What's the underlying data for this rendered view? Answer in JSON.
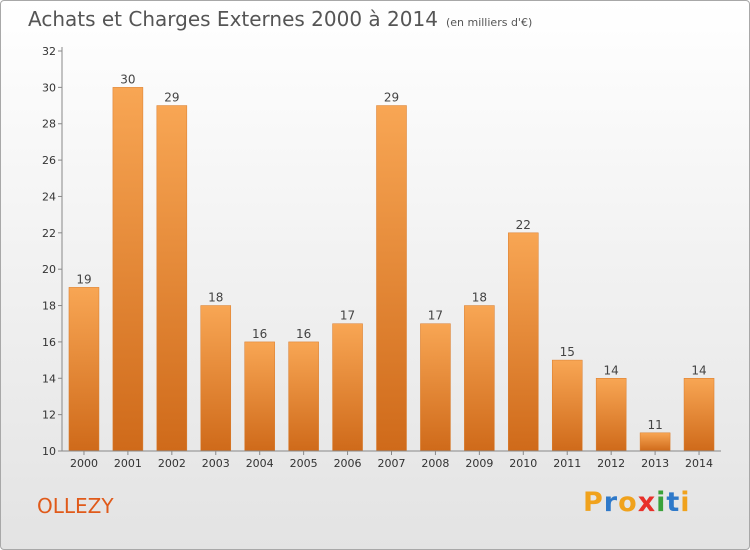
{
  "title": "Achats et Charges Externes 2000 à 2014",
  "subtitle": "(en milliers d'€)",
  "commune": "OLLEZY",
  "logo": {
    "letters": [
      "P",
      "r",
      "o",
      "x",
      "i",
      "t",
      "i"
    ],
    "colors": [
      "#f0a21c",
      "#2e79c9",
      "#f0a21c",
      "#e8302a",
      "#3aa23a",
      "#2e79c9",
      "#f0a21c"
    ]
  },
  "chart_data": {
    "type": "bar",
    "title": "Achats et Charges Externes 2000 à 2014",
    "subtitle": "(en milliers d'€)",
    "categories": [
      "2000",
      "2001",
      "2002",
      "2003",
      "2004",
      "2005",
      "2006",
      "2007",
      "2008",
      "2009",
      "2010",
      "2011",
      "2012",
      "2013",
      "2014"
    ],
    "values": [
      19,
      30,
      29,
      18,
      16,
      16,
      17,
      29,
      17,
      18,
      22,
      15,
      14,
      11,
      14
    ],
    "ylim": [
      10,
      32
    ],
    "yticks": [
      10,
      12,
      14,
      16,
      18,
      20,
      22,
      24,
      26,
      28,
      30,
      32
    ],
    "grid": false,
    "bar_color_top": "#f8a654",
    "bar_color_bottom": "#cf6a1a"
  }
}
